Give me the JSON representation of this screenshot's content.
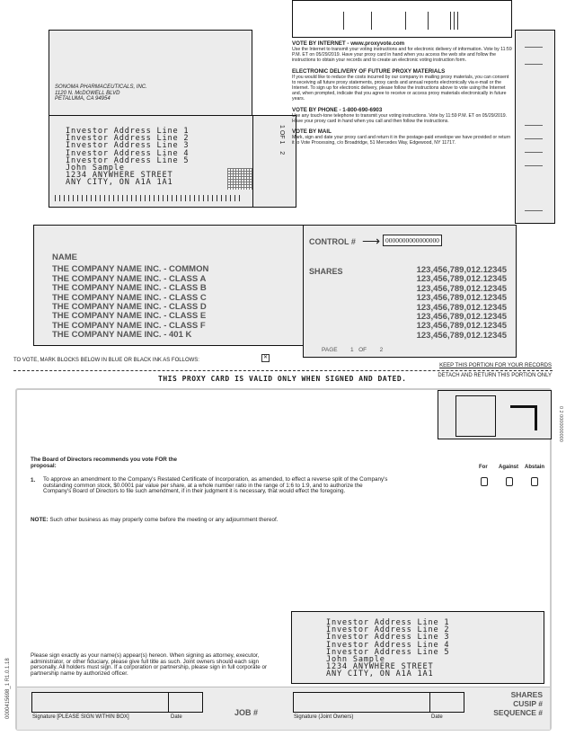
{
  "return_address": {
    "lines": [
      "SONOMA PHARMACEUTICALS, INC.",
      "1120 N. McDOWELL BLVD",
      "PETALUMA, CA 94954"
    ]
  },
  "investor": {
    "lines": [
      "Investor Address Line 1",
      "Investor Address Line 2",
      "Investor Address Line 3",
      "Investor Address Line 4",
      "Investor Address Line 5",
      "John Sample",
      "1234 ANYWHERE STREET",
      "ANY CITY, ON   A1A 1A1"
    ]
  },
  "side_page": {
    "a": "1",
    "of": "OF",
    "b": "1",
    "c": "2"
  },
  "voting": {
    "internet_title": "VOTE BY INTERNET - www.proxyvote.com",
    "internet_text": "Use the Internet to transmit your voting instructions and for electronic delivery of information. Vote by 11:59 P.M. ET on 05/29/2019. Have your proxy card in hand when you access the web site and follow the instructions to obtain your records and to create an electronic voting instruction form.",
    "edelivery_title": "ELECTRONIC DELIVERY OF FUTURE PROXY MATERIALS",
    "edelivery_text": "If you would like to reduce the costs incurred by our company in mailing proxy materials, you can consent to receiving all future proxy statements, proxy cards and annual reports electronically via e-mail or the Internet. To sign up for electronic delivery, please follow the instructions above to vote using the Internet and, when prompted, indicate that you agree to receive or access proxy materials electronically in future years.",
    "phone_title": "VOTE BY PHONE - 1-800-690-6903",
    "phone_text": "Use any touch-tone telephone to transmit your voting instructions. Vote by 11:59 P.M. ET on 05/29/2019. Have your proxy card in hand when you call and then follow the instructions.",
    "mail_title": "VOTE BY MAIL",
    "mail_text": "Mark, sign and date your proxy card and return it in the postage-paid envelope we have provided or return it to Vote Processing, c/o Broadridge, 51 Mercedes Way, Edgewood, NY 11717."
  },
  "holdings": {
    "name_header": "NAME",
    "names": [
      "THE COMPANY NAME INC. - COMMON",
      "THE COMPANY NAME INC. - CLASS A",
      "THE COMPANY NAME INC. - CLASS B",
      "THE COMPANY NAME INC. - CLASS C",
      "THE COMPANY NAME INC. - CLASS D",
      "THE COMPANY NAME INC. - CLASS E",
      "THE COMPANY NAME INC. - CLASS F",
      "THE COMPANY NAME INC. - 401 K"
    ],
    "control_label": "CONTROL #",
    "control_value": "0000000000000000",
    "shares_label": "SHARES",
    "shares": [
      "123,456,789,012.12345",
      "123,456,789,012.12345",
      "123,456,789,012.12345",
      "123,456,789,012.12345",
      "123,456,789,012.12345",
      "123,456,789,012.12345",
      "123,456,789,012.12345",
      "123,456,789,012.12345"
    ],
    "page_label": "PAGE",
    "page_num": "1",
    "page_of": "OF",
    "page_total": "2"
  },
  "instructions": {
    "mark": "TO VOTE, MARK BLOCKS BELOW IN BLUE OR BLACK INK AS FOLLOWS:",
    "keep": "KEEP THIS PORTION FOR YOUR RECORDS",
    "detach": "DETACH AND RETURN THIS PORTION ONLY",
    "valid": "THIS PROXY CARD IS VALID ONLY WHEN SIGNED AND DATED."
  },
  "card": {
    "side_code": "0 2   0000000000",
    "board": "The Board of Directors recommends you vote FOR the proposal:",
    "headers": [
      "For",
      "Against",
      "Abstain"
    ],
    "proposal_num": "1.",
    "proposal": "To approve an amendment to the Company's Restated Certificate of Incorporation, as amended, to effect a reverse split of the Company's outstanding common stock, $0.0001 par value per share, at a whole number ratio in the range of 1:6 to 1:9, and to authorize the Company's Board of Directors to file such amendment, if in their judgment it is necessary, that would effect the foregoing.",
    "note_label": "NOTE:",
    "note": "Such other business as may properly come before the meeting or any adjournment thereof.",
    "sign_text": "Please sign exactly as your name(s) appear(s) hereon. When signing as attorney, executor, administrator, or other fiduciary, please give full title as such. Joint owners should each sign personally. All holders must sign. If a corporation or partnership, please sign in full corporate or partnership name by authorized officer.",
    "sig_label": "Signature [PLEASE SIGN WITHIN BOX]",
    "date_label": "Date",
    "job_label": "JOB #",
    "joint_label": "Signature (Joint Owners)",
    "date2_label": "Date",
    "right_labels": [
      "SHARES",
      "CUSIP #",
      "SEQUENCE #"
    ],
    "vertical_code": "0000415698_1   R1.0.1.18"
  }
}
